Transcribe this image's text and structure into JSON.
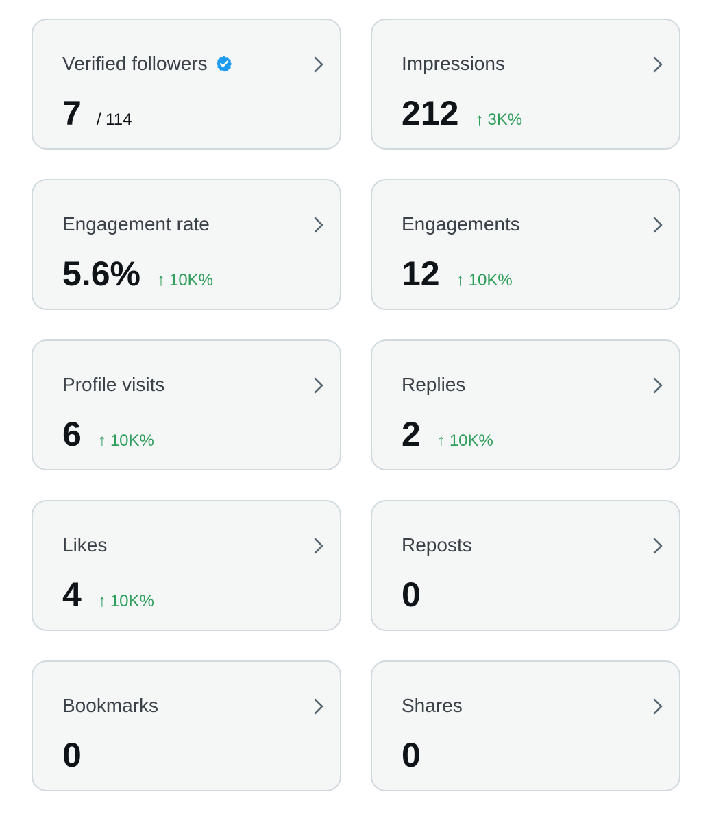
{
  "cards": [
    {
      "title": "Verified followers",
      "value": "7",
      "suffix": "/ 114",
      "delta": "",
      "verified": true
    },
    {
      "title": "Impressions",
      "value": "212",
      "suffix": "",
      "delta": "3K%"
    },
    {
      "title": "Engagement rate",
      "value": "5.6%",
      "suffix": "",
      "delta": "10K%"
    },
    {
      "title": "Engagements",
      "value": "12",
      "suffix": "",
      "delta": "10K%"
    },
    {
      "title": "Profile visits",
      "value": "6",
      "suffix": "",
      "delta": "10K%"
    },
    {
      "title": "Replies",
      "value": "2",
      "suffix": "",
      "delta": "10K%"
    },
    {
      "title": "Likes",
      "value": "4",
      "suffix": "",
      "delta": "10K%"
    },
    {
      "title": "Reposts",
      "value": "0",
      "suffix": "",
      "delta": ""
    },
    {
      "title": "Bookmarks",
      "value": "0",
      "suffix": "",
      "delta": ""
    },
    {
      "title": "Shares",
      "value": "0",
      "suffix": "",
      "delta": ""
    }
  ],
  "delta_arrow": "↑",
  "icons": {
    "chevron": "chevron-right-icon",
    "verified": "verified-badge-icon"
  },
  "colors": {
    "card_bg": "#f5f6f6",
    "card_border": "#cfd9de",
    "title": "#3a4148",
    "value": "#0f1419",
    "delta_positive": "#2e9e5b",
    "verified_blue": "#1d9bf0",
    "chevron": "#536471"
  }
}
